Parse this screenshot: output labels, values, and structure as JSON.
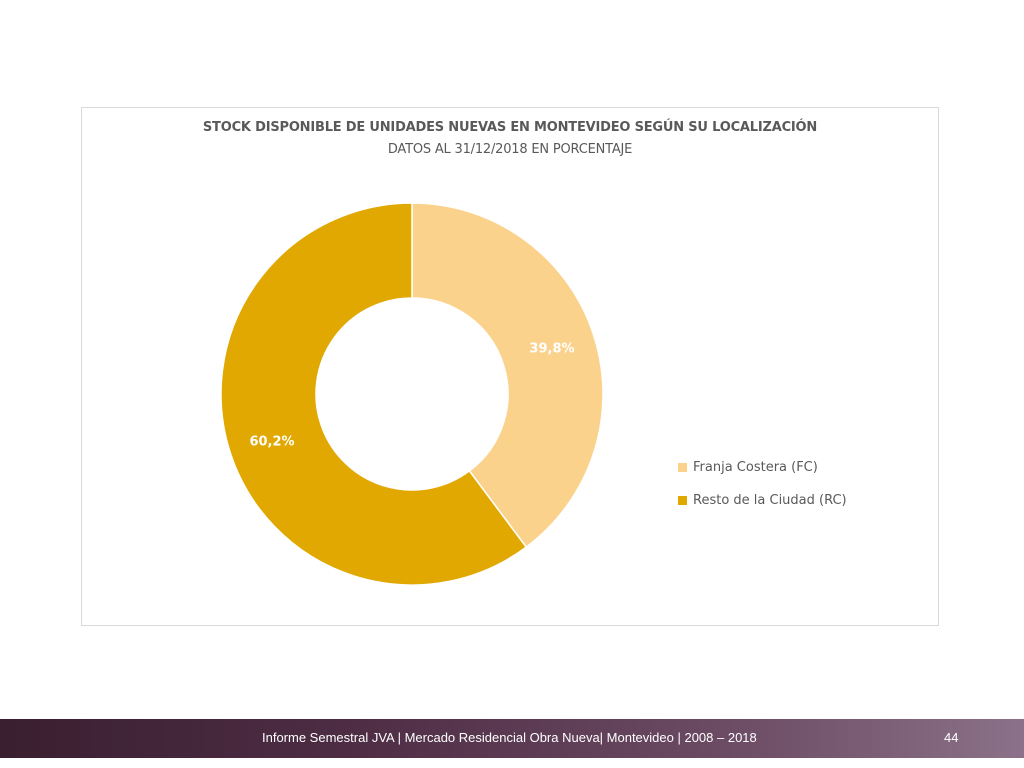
{
  "chart_data": {
    "type": "pie",
    "variant": "donut",
    "title": "STOCK DISPONIBLE DE UNIDADES NUEVAS EN MONTEVIDEO SEGÚN SU LOCALIZACIÓN",
    "subtitle": "DATOS AL 31/12/2018 EN PORCENTAJE",
    "categories": [
      "Franja Costera (FC)",
      "Resto de la Ciudad (RC)"
    ],
    "values": [
      39.8,
      60.2
    ],
    "data_labels": [
      "39,8%",
      "60,2%"
    ],
    "colors": [
      "#fbd28c",
      "#e0a800"
    ],
    "legend_position": "right"
  },
  "footer": {
    "text": "Informe Semestral JVA | Mercado Residencial Obra Nueva| Montevideo | 2008 – 2018",
    "page_number": "44"
  }
}
